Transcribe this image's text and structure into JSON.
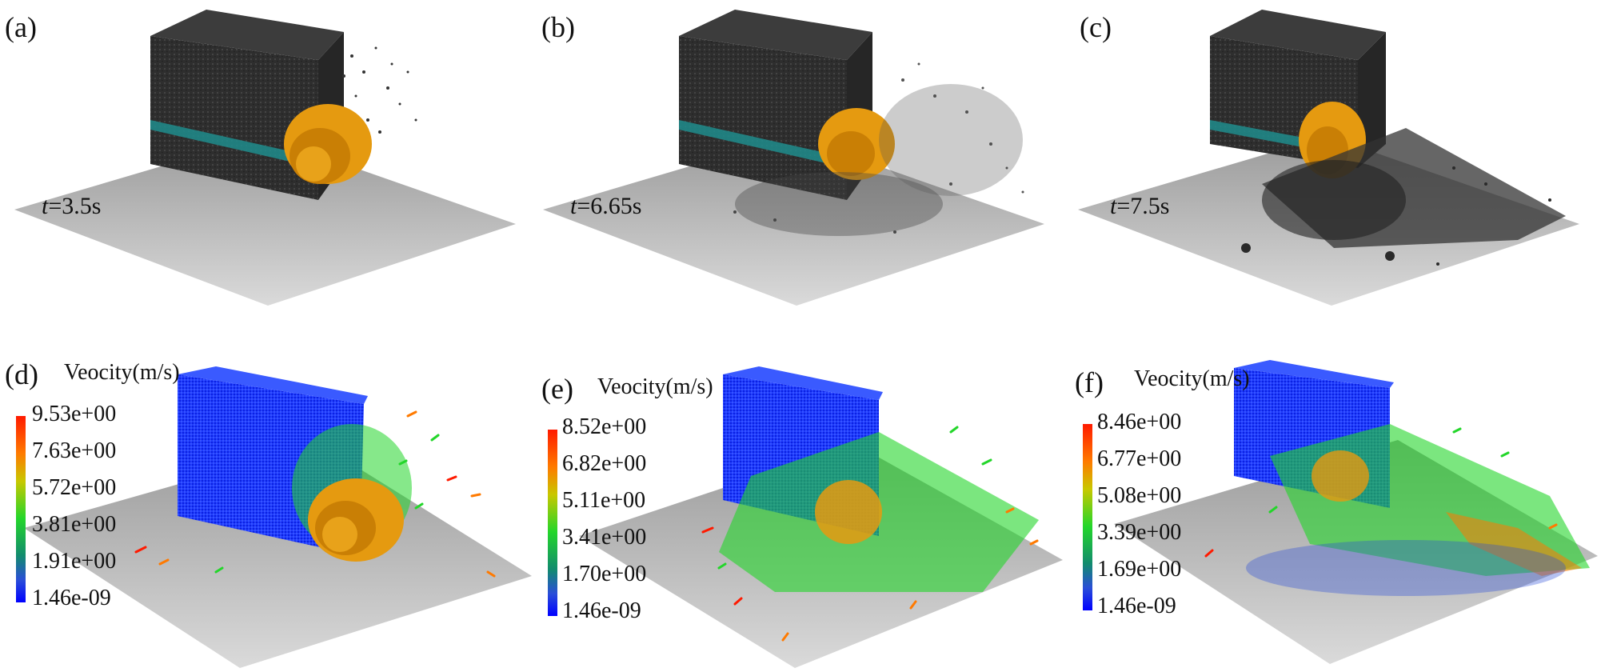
{
  "panels_top": [
    {
      "label": "(a)",
      "time_label": "t=3.5s",
      "time_italic": "t",
      "time_value": "=3.5s"
    },
    {
      "label": "(b)",
      "time_label": "t=6.65s",
      "time_italic": "t",
      "time_value": "=6.65s"
    },
    {
      "label": "(c)",
      "time_label": "t=7.5s",
      "time_italic": "t",
      "time_value": "=7.5s"
    }
  ],
  "panels_bottom": [
    {
      "label": "(d)",
      "legend_title": "Veocity(m/s)",
      "ticks": [
        "9.53e+00",
        "7.63e+00",
        "5.72e+00",
        "3.81e+00",
        "1.91e+00",
        "1.46e-09"
      ]
    },
    {
      "label": "(e)",
      "legend_title": "Veocity(m/s)",
      "ticks": [
        "8.52e+00",
        "6.82e+00",
        "5.11e+00",
        "3.41e+00",
        "1.70e+00",
        "1.46e-09"
      ]
    },
    {
      "label": "(f)",
      "legend_title": "Veocity(m/s)",
      "ticks": [
        "8.46e+00",
        "6.77e+00",
        "5.08e+00",
        "3.39e+00",
        "1.69e+00",
        "1.46e-09"
      ]
    }
  ],
  "colors": {
    "floor_top": "#9a9a9a",
    "floor_bottom": "#dadada",
    "coal_block": "#2e2e2e",
    "coal_seam": "#1e8c8c",
    "cutter": "#e59a10",
    "velocity_low": "#0a18ff",
    "velocity_mid": "#23d62a",
    "velocity_high": "#ff1a00"
  },
  "icons": {
    "cutter": "shearer-drum-icon",
    "block": "coal-block-icon"
  }
}
